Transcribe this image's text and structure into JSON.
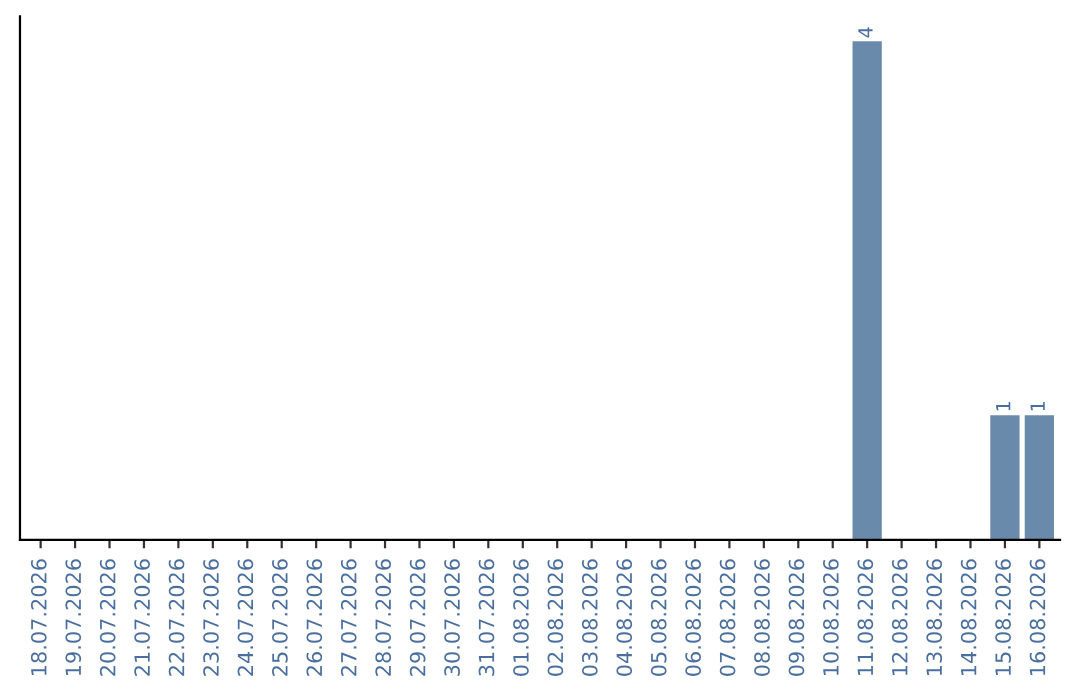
{
  "chart_data": {
    "type": "bar",
    "categories": [
      "18.07.2026",
      "19.07.2026",
      "20.07.2026",
      "21.07.2026",
      "22.07.2026",
      "23.07.2026",
      "24.07.2026",
      "25.07.2026",
      "26.07.2026",
      "27.07.2026",
      "28.07.2026",
      "29.07.2026",
      "30.07.2026",
      "31.07.2026",
      "01.08.2026",
      "02.08.2026",
      "03.08.2026",
      "04.08.2026",
      "05.08.2026",
      "06.08.2026",
      "07.08.2026",
      "08.08.2026",
      "09.08.2026",
      "10.08.2026",
      "11.08.2026",
      "12.08.2026",
      "13.08.2026",
      "14.08.2026",
      "15.08.2026",
      "16.08.2026"
    ],
    "values": [
      null,
      null,
      null,
      null,
      null,
      null,
      null,
      null,
      null,
      null,
      null,
      null,
      null,
      null,
      null,
      null,
      null,
      null,
      null,
      null,
      null,
      null,
      null,
      null,
      4,
      null,
      null,
      null,
      1,
      1
    ],
    "data_labels": true,
    "color": "#6a8aab",
    "tick_labels": "x",
    "grid": false
  }
}
